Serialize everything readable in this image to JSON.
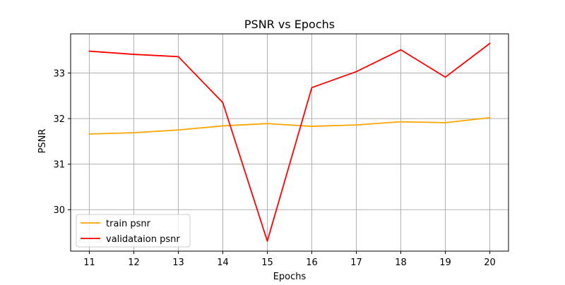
{
  "chart_data": {
    "type": "line",
    "title": "PSNR vs Epochs",
    "xlabel": "Epochs",
    "ylabel": "PSNR",
    "x": [
      11,
      12,
      13,
      14,
      15,
      16,
      17,
      18,
      19,
      20
    ],
    "xlim": [
      10.58,
      20.42
    ],
    "ylim": [
      29.09,
      33.86
    ],
    "yticks": [
      30,
      31,
      32,
      33
    ],
    "grid": true,
    "legend_position": "lower-left",
    "series": [
      {
        "name": "train psnr",
        "color": "#ffa500",
        "values": [
          31.66,
          31.69,
          31.75,
          31.84,
          31.89,
          31.83,
          31.86,
          31.93,
          31.91,
          32.02
        ]
      },
      {
        "name": "validataion psnr",
        "color": "#ff0000",
        "values": [
          33.48,
          33.41,
          33.36,
          32.35,
          29.31,
          32.68,
          33.03,
          33.51,
          32.91,
          33.65
        ]
      }
    ]
  }
}
